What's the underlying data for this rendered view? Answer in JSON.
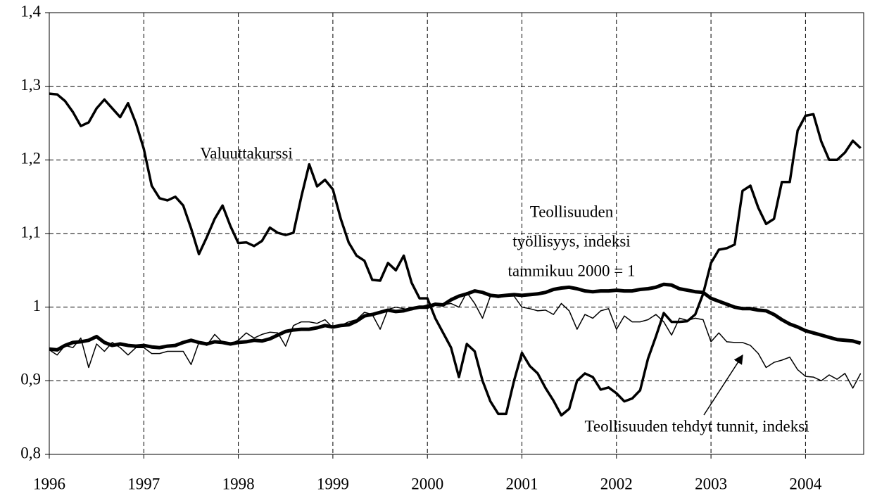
{
  "chart_data": {
    "type": "line",
    "categories": [
      "1996",
      null,
      null,
      null,
      null,
      null,
      null,
      null,
      null,
      null,
      null,
      null,
      "1997",
      null,
      null,
      null,
      null,
      null,
      null,
      null,
      null,
      null,
      null,
      null,
      "1998",
      null,
      null,
      null,
      null,
      null,
      null,
      null,
      null,
      null,
      null,
      null,
      "1999",
      null,
      null,
      null,
      null,
      null,
      null,
      null,
      null,
      null,
      null,
      null,
      "2000",
      null,
      null,
      null,
      null,
      null,
      null,
      null,
      null,
      null,
      null,
      null,
      "2001",
      null,
      null,
      null,
      null,
      null,
      null,
      null,
      null,
      null,
      null,
      null,
      "2002",
      null,
      null,
      null,
      null,
      null,
      null,
      null,
      null,
      null,
      null,
      null,
      "2003",
      null,
      null,
      null,
      null,
      null,
      null,
      null,
      null,
      null,
      null,
      null,
      "2004",
      null,
      null,
      null,
      null,
      null,
      null,
      null
    ],
    "series": [
      {
        "color": "#000000",
        "width": 3.5,
        "values": [
          1.29,
          1.289,
          1.28,
          1.265,
          1.246,
          1.251,
          1.27,
          1.282,
          1.27,
          1.258,
          1.277,
          1.25,
          1.215,
          1.165,
          1.148,
          1.145,
          1.15,
          1.138,
          1.107,
          1.072,
          1.095,
          1.12,
          1.138,
          1.11,
          1.087,
          1.088,
          1.083,
          1.09,
          1.108,
          1.101,
          1.098,
          1.101,
          1.15,
          1.194,
          1.164,
          1.173,
          1.16,
          1.12,
          1.088,
          1.07,
          1.063,
          1.037,
          1.036,
          1.06,
          1.05,
          1.07,
          1.033,
          1.012,
          1.012,
          0.985,
          0.965,
          0.945,
          0.905,
          0.95,
          0.94,
          0.9,
          0.872,
          0.855,
          0.855,
          0.9,
          0.938,
          0.92,
          0.91,
          0.89,
          0.873,
          0.853,
          0.862,
          0.9,
          0.91,
          0.905,
          0.888,
          0.891,
          0.883,
          0.872,
          0.876,
          0.887,
          0.93,
          0.96,
          0.992,
          0.98,
          0.98,
          0.981,
          0.99,
          1.018,
          1.06,
          1.078,
          1.08,
          1.085,
          1.158,
          1.165,
          1.135,
          1.113,
          1.12,
          1.17,
          1.17,
          1.24,
          1.26,
          1.262,
          1.225,
          1.2,
          1.2,
          1.21,
          1.226,
          1.216
        ]
      },
      {
        "color": "#000000",
        "width": 5,
        "values": [
          0.943,
          0.942,
          0.948,
          0.952,
          0.953,
          0.955,
          0.96,
          0.952,
          0.948,
          0.95,
          0.948,
          0.947,
          0.948,
          0.946,
          0.945,
          0.947,
          0.948,
          0.952,
          0.955,
          0.952,
          0.95,
          0.953,
          0.952,
          0.95,
          0.952,
          0.953,
          0.955,
          0.954,
          0.957,
          0.962,
          0.967,
          0.969,
          0.97,
          0.97,
          0.972,
          0.975,
          0.973,
          0.975,
          0.976,
          0.981,
          0.988,
          0.99,
          0.993,
          0.996,
          0.994,
          0.995,
          0.998,
          1.0,
          1.0,
          1.004,
          1.003,
          1.01,
          1.015,
          1.018,
          1.022,
          1.02,
          1.016,
          1.015,
          1.016,
          1.017,
          1.016,
          1.017,
          1.018,
          1.02,
          1.024,
          1.026,
          1.027,
          1.025,
          1.022,
          1.021,
          1.022,
          1.022,
          1.023,
          1.022,
          1.022,
          1.024,
          1.025,
          1.027,
          1.031,
          1.03,
          1.025,
          1.023,
          1.021,
          1.02,
          1.012,
          1.008,
          1.004,
          1.0,
          0.998,
          0.998,
          0.996,
          0.995,
          0.99,
          0.983,
          0.977,
          0.973,
          0.968,
          0.965,
          0.962,
          0.959,
          0.956,
          0.955,
          0.954,
          0.951
        ]
      },
      {
        "color": "#000000",
        "width": 1.5,
        "values": [
          0.942,
          0.935,
          0.948,
          0.945,
          0.958,
          0.918,
          0.95,
          0.94,
          0.952,
          0.945,
          0.935,
          0.945,
          0.945,
          0.937,
          0.937,
          0.94,
          0.94,
          0.94,
          0.922,
          0.952,
          0.948,
          0.963,
          0.952,
          0.95,
          0.955,
          0.965,
          0.958,
          0.963,
          0.966,
          0.965,
          0.947,
          0.975,
          0.98,
          0.98,
          0.978,
          0.983,
          0.972,
          0.975,
          0.98,
          0.983,
          0.993,
          0.99,
          0.97,
          0.997,
          1.0,
          0.998,
          0.996,
          1.0,
          1.003,
          1.005,
          1.003,
          1.005,
          1.0,
          1.02,
          1.005,
          0.985,
          1.015,
          1.013,
          1.015,
          1.015,
          1.0,
          0.998,
          0.995,
          0.996,
          0.99,
          1.005,
          0.995,
          0.97,
          0.99,
          0.985,
          0.995,
          0.998,
          0.97,
          0.988,
          0.98,
          0.98,
          0.983,
          0.99,
          0.98,
          0.962,
          0.985,
          0.982,
          0.985,
          0.983,
          0.953,
          0.965,
          0.953,
          0.952,
          0.952,
          0.948,
          0.937,
          0.918,
          0.925,
          0.928,
          0.932,
          0.915,
          0.906,
          0.905,
          0.9,
          0.908,
          0.902,
          0.91,
          0.89,
          0.91
        ]
      }
    ],
    "annotations": [
      {
        "lines": [
          "Valuuttakurssi"
        ]
      },
      {
        "lines": [
          "Teollisuuden",
          "työllisyys, indeksi",
          "tammikuu 2000 = 1"
        ]
      },
      {
        "lines": [
          "Teollisuuden tehdyt tunnit, indeksi"
        ]
      }
    ],
    "ylim": [
      0.8,
      1.4
    ],
    "yticks": [
      {
        "value": 0.8,
        "label": "0,8"
      },
      {
        "value": 0.9,
        "label": "0,9"
      },
      1,
      {
        "value": 1.1,
        "label": "1,1"
      },
      {
        "value": 1.2,
        "label": "1,2"
      },
      {
        "value": 1.3,
        "label": "1,3"
      },
      {
        "value": 1.4,
        "label": "1,4"
      }
    ],
    "grid": true
  }
}
